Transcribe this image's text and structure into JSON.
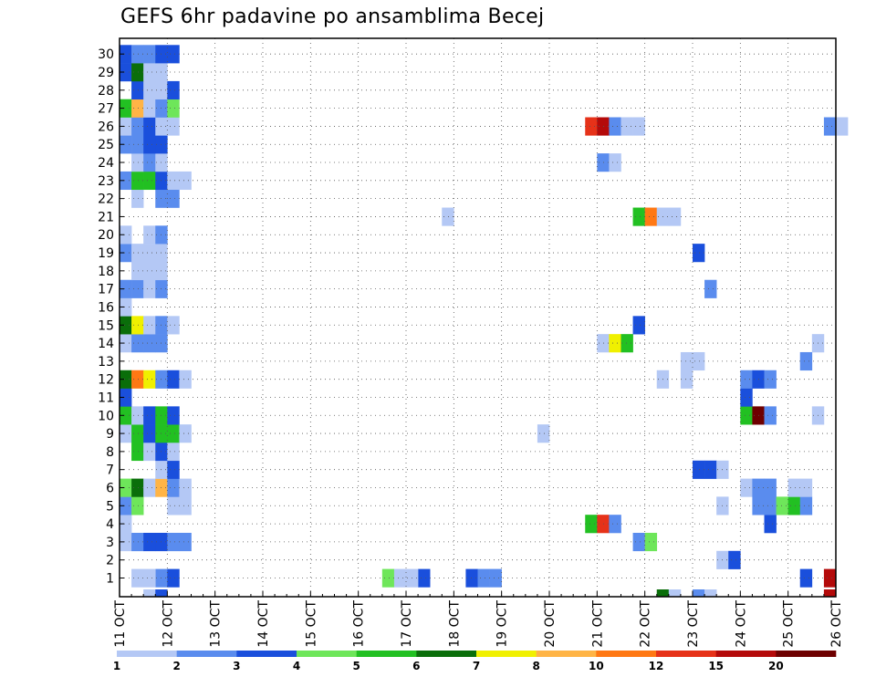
{
  "chart_data": {
    "type": "heatmap",
    "title": "GEFS 6hr padavine po ansamblima Becej",
    "y_members": [
      "1",
      "2",
      "3",
      "4",
      "5",
      "6",
      "7",
      "8",
      "9",
      "10",
      "11",
      "12",
      "13",
      "14",
      "15",
      "16",
      "17",
      "18",
      "19",
      "20",
      "21",
      "22",
      "23",
      "24",
      "25",
      "26",
      "27",
      "28",
      "29",
      "30"
    ],
    "x_tick_labels": [
      "11 OCT",
      "12 OCT",
      "13 OCT",
      "14 OCT",
      "15 OCT",
      "16 OCT",
      "17 OCT",
      "18 OCT",
      "19 OCT",
      "20 OCT",
      "21 OCT",
      "22 OCT",
      "23 OCT",
      "24 OCT",
      "25 OCT",
      "26 OCT"
    ],
    "x_range_days": [
      11,
      26
    ],
    "time_step_hours": 6,
    "grid": "dotted",
    "colorbar": {
      "levels": [
        "1",
        "2",
        "3",
        "4",
        "5",
        "6",
        "7",
        "8",
        "10",
        "12",
        "15",
        "20"
      ],
      "colors": [
        "#b4c8f5",
        "#5a8cee",
        "#1a4fdc",
        "#6ee65a",
        "#22c022",
        "#0a6e0a",
        "#f0f000",
        "#ffb446",
        "#ff7814",
        "#e63219",
        "#b40a0a",
        "#6e0000"
      ]
    },
    "cells_note": "each cell: [member_row, six_hour_step_index_from_11_OCT_00Z, color_class_index_0_to_11]",
    "cells": [
      [
        0,
        3,
        1
      ],
      [
        0,
        4,
        2
      ],
      [
        0,
        1,
        0
      ],
      [
        0,
        2,
        0
      ],
      [
        0,
        22,
        3
      ],
      [
        0,
        23,
        0
      ],
      [
        0,
        25,
        2
      ],
      [
        0,
        24,
        0
      ],
      [
        0,
        31,
        1
      ],
      [
        0,
        29,
        2
      ],
      [
        0,
        30,
        1
      ],
      [
        0,
        57,
        2
      ],
      [
        0,
        59,
        10
      ],
      [
        1,
        50,
        0
      ],
      [
        1,
        51,
        2
      ],
      [
        2,
        0,
        0
      ],
      [
        2,
        1,
        1
      ],
      [
        2,
        2,
        2
      ],
      [
        2,
        3,
        2
      ],
      [
        2,
        4,
        1
      ],
      [
        2,
        5,
        1
      ],
      [
        2,
        43,
        1
      ],
      [
        2,
        44,
        3
      ],
      [
        3,
        0,
        0
      ],
      [
        3,
        39,
        4
      ],
      [
        3,
        40,
        9
      ],
      [
        3,
        41,
        1
      ],
      [
        3,
        54,
        2
      ],
      [
        4,
        0,
        1
      ],
      [
        4,
        1,
        3
      ],
      [
        4,
        4,
        0
      ],
      [
        4,
        5,
        0
      ],
      [
        4,
        50,
        0
      ],
      [
        4,
        53,
        1
      ],
      [
        4,
        54,
        1
      ],
      [
        4,
        55,
        3
      ],
      [
        4,
        56,
        4
      ],
      [
        4,
        57,
        1
      ],
      [
        5,
        0,
        3
      ],
      [
        5,
        1,
        5
      ],
      [
        5,
        2,
        0
      ],
      [
        5,
        3,
        7
      ],
      [
        5,
        4,
        1
      ],
      [
        5,
        5,
        0
      ],
      [
        5,
        52,
        0
      ],
      [
        5,
        53,
        1
      ],
      [
        5,
        54,
        1
      ],
      [
        5,
        56,
        0
      ],
      [
        5,
        57,
        0
      ],
      [
        6,
        3,
        0
      ],
      [
        6,
        4,
        2
      ],
      [
        6,
        48,
        2
      ],
      [
        6,
        49,
        2
      ],
      [
        6,
        50,
        0
      ],
      [
        7,
        1,
        4
      ],
      [
        7,
        2,
        0
      ],
      [
        7,
        3,
        2
      ],
      [
        7,
        4,
        0
      ],
      [
        8,
        0,
        0
      ],
      [
        8,
        1,
        4
      ],
      [
        8,
        2,
        2
      ],
      [
        8,
        3,
        4
      ],
      [
        8,
        4,
        4
      ],
      [
        8,
        5,
        0
      ],
      [
        8,
        35,
        0
      ],
      [
        9,
        0,
        4
      ],
      [
        9,
        1,
        0
      ],
      [
        9,
        2,
        2
      ],
      [
        9,
        3,
        4
      ],
      [
        9,
        4,
        2
      ],
      [
        9,
        52,
        4
      ],
      [
        9,
        53,
        11
      ],
      [
        9,
        54,
        1
      ],
      [
        9,
        58,
        0
      ],
      [
        10,
        0,
        2
      ],
      [
        10,
        52,
        2
      ],
      [
        11,
        0,
        5
      ],
      [
        11,
        1,
        8
      ],
      [
        11,
        2,
        6
      ],
      [
        11,
        3,
        1
      ],
      [
        11,
        4,
        2
      ],
      [
        11,
        5,
        0
      ],
      [
        11,
        45,
        0
      ],
      [
        11,
        47,
        0
      ],
      [
        11,
        52,
        1
      ],
      [
        11,
        53,
        2
      ],
      [
        11,
        54,
        1
      ],
      [
        12,
        47,
        0
      ],
      [
        12,
        48,
        0
      ],
      [
        12,
        57,
        1
      ],
      [
        13,
        0,
        0
      ],
      [
        13,
        1,
        1
      ],
      [
        13,
        2,
        1
      ],
      [
        13,
        3,
        1
      ],
      [
        13,
        40,
        0
      ],
      [
        13,
        41,
        6
      ],
      [
        13,
        42,
        4
      ],
      [
        13,
        58,
        0
      ],
      [
        14,
        0,
        5
      ],
      [
        14,
        1,
        6
      ],
      [
        14,
        2,
        0
      ],
      [
        14,
        3,
        1
      ],
      [
        14,
        4,
        0
      ],
      [
        14,
        43,
        2
      ],
      [
        15,
        0,
        0
      ],
      [
        16,
        0,
        1
      ],
      [
        16,
        1,
        1
      ],
      [
        16,
        2,
        0
      ],
      [
        16,
        3,
        1
      ],
      [
        16,
        49,
        1
      ],
      [
        17,
        1,
        0
      ],
      [
        17,
        2,
        0
      ],
      [
        17,
        3,
        0
      ],
      [
        18,
        0,
        1
      ],
      [
        18,
        1,
        0
      ],
      [
        18,
        2,
        0
      ],
      [
        18,
        3,
        0
      ],
      [
        18,
        48,
        2
      ],
      [
        19,
        0,
        0
      ],
      [
        19,
        2,
        0
      ],
      [
        19,
        3,
        1
      ],
      [
        20,
        27,
        0
      ],
      [
        20,
        43,
        4
      ],
      [
        20,
        44,
        8
      ],
      [
        20,
        45,
        0
      ],
      [
        20,
        46,
        0
      ],
      [
        21,
        1,
        0
      ],
      [
        21,
        3,
        1
      ],
      [
        21,
        4,
        1
      ],
      [
        22,
        0,
        1
      ],
      [
        22,
        1,
        4
      ],
      [
        22,
        2,
        4
      ],
      [
        22,
        3,
        2
      ],
      [
        22,
        4,
        0
      ],
      [
        22,
        5,
        0
      ],
      [
        23,
        1,
        0
      ],
      [
        23,
        2,
        1
      ],
      [
        23,
        3,
        0
      ],
      [
        23,
        40,
        1
      ],
      [
        23,
        41,
        0
      ],
      [
        24,
        0,
        1
      ],
      [
        24,
        1,
        1
      ],
      [
        24,
        2,
        2
      ],
      [
        24,
        3,
        2
      ],
      [
        25,
        0,
        0
      ],
      [
        25,
        1,
        1
      ],
      [
        25,
        2,
        2
      ],
      [
        25,
        3,
        0
      ],
      [
        25,
        4,
        0
      ],
      [
        25,
        39,
        9
      ],
      [
        25,
        40,
        10
      ],
      [
        25,
        41,
        1
      ],
      [
        25,
        42,
        0
      ],
      [
        25,
        43,
        0
      ],
      [
        25,
        59,
        1
      ],
      [
        25,
        60,
        0
      ],
      [
        26,
        0,
        4
      ],
      [
        26,
        1,
        7
      ],
      [
        26,
        2,
        0
      ],
      [
        26,
        3,
        1
      ],
      [
        26,
        4,
        3
      ],
      [
        27,
        1,
        2
      ],
      [
        27,
        2,
        0
      ],
      [
        27,
        3,
        0
      ],
      [
        27,
        4,
        2
      ],
      [
        28,
        0,
        2
      ],
      [
        28,
        1,
        5
      ],
      [
        28,
        2,
        0
      ],
      [
        28,
        3,
        0
      ],
      [
        29,
        0,
        2
      ],
      [
        29,
        1,
        1
      ],
      [
        29,
        2,
        1
      ],
      [
        29,
        3,
        2
      ],
      [
        29,
        4,
        2
      ]
    ]
  }
}
